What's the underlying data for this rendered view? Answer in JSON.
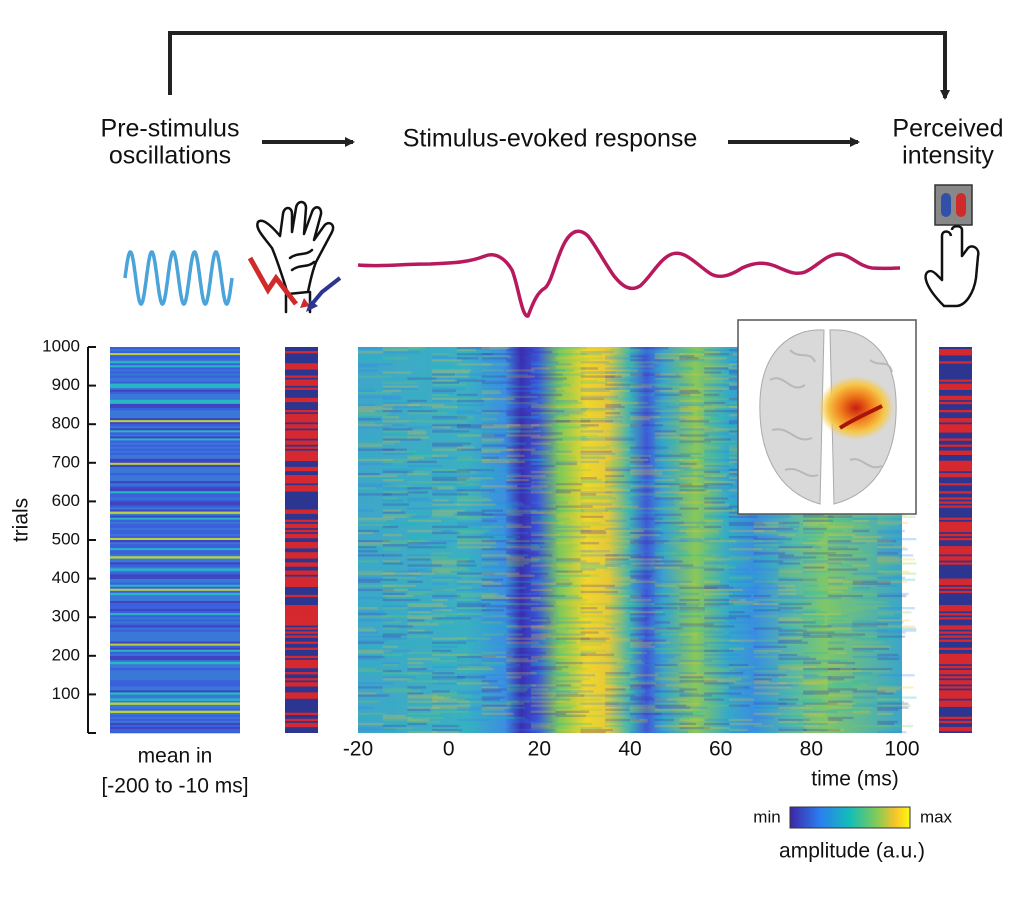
{
  "flow": {
    "pre": [
      "Pre-stimulus",
      "oscillations"
    ],
    "evoked": "Stimulus-evoked response",
    "perceived": [
      "Perceived",
      "intensity"
    ]
  },
  "trials_axis": {
    "label": "trials",
    "lim": [
      0,
      1000
    ],
    "ticks": [
      100,
      200,
      300,
      400,
      500,
      600,
      700,
      800,
      900,
      1000
    ]
  },
  "mean_label": [
    "mean in",
    "[-200 to -10 ms]"
  ],
  "time_axis": {
    "label": "time (ms)",
    "lim": [
      -20,
      100
    ],
    "ticks": [
      -20,
      0,
      20,
      40,
      60,
      80,
      100
    ]
  },
  "colorbar": {
    "min": "min",
    "max": "max",
    "label": "amplitude (a.u.)"
  }
}
